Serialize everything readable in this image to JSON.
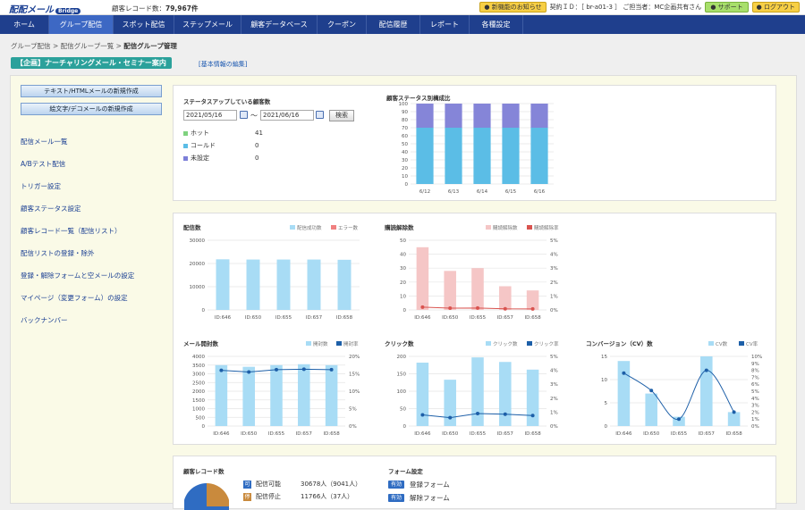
{
  "header": {
    "logo_main": "配配メール",
    "logo_sub": "Bridge",
    "record_label": "顧客レコード数：",
    "record_count": "79,967件",
    "news_button": "新機能のお知らせ",
    "contract": "契約ＩＤ：［ br-a01-3 ］ ご担当者：MC企画共有さん",
    "support_button": "サポート",
    "logout_button": "ログアウト"
  },
  "nav": [
    "ホーム",
    "グループ配信",
    "スポット配信",
    "ステップメール",
    "顧客データベース",
    "クーポン",
    "配信履歴",
    "レポート",
    "各種設定"
  ],
  "breadcrumb": {
    "item1": "グループ配信",
    "sep": ">",
    "item2": "配信グループ一覧",
    "current": "配信グループ管理"
  },
  "page_title": "【企画】ナーチャリングメール・セミナー案内",
  "edit_link": "[基本情報の編集]",
  "left_buttons": [
    "テキスト/HTMLメールの新規作成",
    "絵文字/デコメールの新規作成"
  ],
  "left_menu": [
    "配信メール一覧",
    "A/Bテスト配信",
    "トリガー設定",
    "顧客ステータス設定",
    "顧客レコード一覧（配信リスト）",
    "配信リストの登録・除外",
    "登録・解除フォームと空メールの設定",
    "マイページ（変更フォーム）の設定",
    "バックナンバー"
  ],
  "status_panel": {
    "title": "ステータスアップしている顧客数",
    "date_from": "2021/05/16",
    "tilde": "～",
    "date_to": "2021/06/16",
    "search_button": "検索",
    "rows": [
      {
        "label": "ホット",
        "value": "41",
        "color": "#7fd27f"
      },
      {
        "label": "コールド",
        "value": "0",
        "color": "#5bbde6"
      },
      {
        "label": "未設定",
        "value": "0",
        "color": "#7c7fd8"
      }
    ]
  },
  "chart_data": [
    {
      "id": "status-ratio",
      "type": "bar",
      "title": "顧客ステータス別構成比",
      "categories": [
        "6/12",
        "6/13",
        "6/14",
        "6/15",
        "6/16"
      ],
      "series": [
        {
          "name": "コールド",
          "values": [
            70,
            70,
            70,
            70,
            70
          ],
          "color": "#5bbde6"
        },
        {
          "name": "未設定",
          "values": [
            30,
            30,
            30,
            30,
            30
          ],
          "color": "#8585d8"
        }
      ],
      "ylim": [
        0,
        100
      ],
      "yticks": [
        0,
        10,
        20,
        30,
        40,
        50,
        60,
        70,
        80,
        90,
        100
      ],
      "stacked": true
    },
    {
      "id": "delivery",
      "type": "bar",
      "title": "配信数",
      "legend": [
        "配信成功数",
        "エラー数"
      ],
      "categories": [
        "ID:646",
        "ID:650",
        "ID:655",
        "ID:657",
        "ID:658"
      ],
      "series": [
        {
          "name": "配信成功数",
          "values": [
            21800,
            21700,
            21700,
            21700,
            21600
          ],
          "color": "#a8dcf5"
        }
      ],
      "ylim": [
        0,
        30000
      ],
      "yticks": [
        "0",
        "10000",
        "20000",
        "30000"
      ]
    },
    {
      "id": "unsubscribe",
      "type": "bar",
      "title": "購読解除数",
      "legend": [
        "購読解除数",
        "購読解除率"
      ],
      "categories": [
        "ID:646",
        "ID:650",
        "ID:655",
        "ID:657",
        "ID:658"
      ],
      "series": [
        {
          "name": "購読解除数",
          "values": [
            45,
            28,
            30,
            17,
            14
          ],
          "color": "#f5c6c6"
        },
        {
          "name": "購読解除率",
          "values": [
            0.2,
            0.13,
            0.14,
            0.08,
            0.07
          ],
          "color": "#d9534f",
          "axis": "right"
        }
      ],
      "ylim": [
        0,
        50
      ],
      "yticks": [
        "0",
        "10",
        "20",
        "30",
        "40",
        "50"
      ],
      "y2lim": [
        0,
        5
      ],
      "y2ticks": [
        "0%",
        "1%",
        "2%",
        "3%",
        "4%",
        "5%"
      ]
    },
    {
      "id": "opens",
      "type": "bar",
      "title": "メール開封数",
      "legend": [
        "開封数",
        "開封率"
      ],
      "categories": [
        "ID:646",
        "ID:650",
        "ID:655",
        "ID:657",
        "ID:658"
      ],
      "series": [
        {
          "name": "開封数",
          "values": [
            3500,
            3400,
            3500,
            3550,
            3500
          ],
          "color": "#a8dcf5"
        },
        {
          "name": "開封率",
          "values": [
            16,
            15.5,
            16.2,
            16.3,
            16.2
          ],
          "color": "#1d5fa8",
          "axis": "right"
        }
      ],
      "ylim": [
        0,
        4000
      ],
      "yticks": [
        "0",
        "500",
        "1000",
        "1500",
        "2000",
        "2500",
        "3000",
        "3500",
        "4000"
      ],
      "y2lim": [
        0,
        20
      ],
      "y2ticks": [
        "0%",
        "5%",
        "10%",
        "15%",
        "20%"
      ]
    },
    {
      "id": "clicks",
      "type": "bar",
      "title": "クリック数",
      "legend": [
        "クリック数",
        "クリック率"
      ],
      "categories": [
        "ID:646",
        "ID:650",
        "ID:655",
        "ID:657",
        "ID:658"
      ],
      "series": [
        {
          "name": "クリック数",
          "values": [
            182,
            133,
            197,
            184,
            162
          ],
          "color": "#a8dcf5"
        },
        {
          "name": "クリック率",
          "values": [
            0.8,
            0.6,
            0.9,
            0.85,
            0.75
          ],
          "color": "#1d5fa8",
          "axis": "right"
        }
      ],
      "ylim": [
        0,
        200
      ],
      "yticks": [
        "0",
        "50",
        "100",
        "150",
        "200"
      ],
      "y2lim": [
        0,
        5
      ],
      "y2ticks": [
        "0%",
        "1%",
        "2%",
        "3%",
        "4%",
        "5%"
      ]
    },
    {
      "id": "conversion",
      "type": "bar",
      "title": "コンバージョン（CV）数",
      "legend": [
        "CV数",
        "CV率"
      ],
      "categories": [
        "ID:646",
        "ID:650",
        "ID:655",
        "ID:657",
        "ID:658"
      ],
      "series": [
        {
          "name": "CV数",
          "values": [
            14,
            7,
            2,
            15,
            3
          ],
          "color": "#a8dcf5"
        },
        {
          "name": "CV率",
          "values": [
            7.6,
            5.1,
            1.0,
            8.0,
            2.0
          ],
          "color": "#1d5fa8",
          "axis": "right",
          "smooth": true
        }
      ],
      "ylim": [
        0,
        15
      ],
      "yticks": [
        "0",
        "5",
        "10",
        "15"
      ],
      "y2lim": [
        0,
        10
      ],
      "y2ticks": [
        "0%",
        "1%",
        "2%",
        "3%",
        "4%",
        "5%",
        "6%",
        "7%",
        "8%",
        "9%",
        "10%"
      ]
    }
  ],
  "record_panel": {
    "title": "顧客レコード数",
    "rows": [
      {
        "icon": "可",
        "label": "配信可能",
        "value": "30678人（9041人）",
        "color": "#2f6cc2"
      },
      {
        "icon": "停",
        "label": "配信停止",
        "value": "11766人（37人）",
        "color": "#c98a3d"
      }
    ]
  },
  "form_panel": {
    "title": "フォーム設定",
    "rows": [
      {
        "tag": "有効",
        "label": "登録フォーム"
      },
      {
        "tag": "有効",
        "label": "解除フォーム"
      }
    ]
  }
}
